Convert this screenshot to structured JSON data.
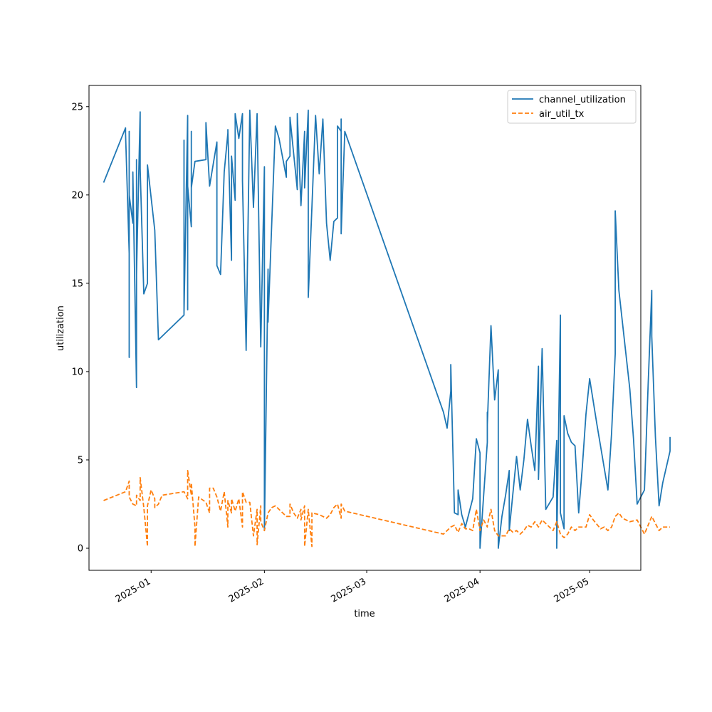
{
  "chart_data": {
    "type": "line",
    "title": "",
    "xlabel": "time",
    "ylabel": "utilization",
    "x_is_date": true,
    "xlim": [
      "2024-12-15",
      "2025-05-15"
    ],
    "ylim": [
      -1.25,
      26.2
    ],
    "x_ticks": [
      "2025-01-01",
      "2025-02-01",
      "2025-03-01",
      "2025-04-01",
      "2025-05-01"
    ],
    "x_tick_labels": [
      "2025-01",
      "2025-02",
      "2025-03",
      "2025-04",
      "2025-05"
    ],
    "y_ticks": [
      0,
      5,
      10,
      15,
      20,
      25
    ],
    "y_tick_labels": [
      "0",
      "5",
      "10",
      "15",
      "20",
      "25"
    ],
    "legend_position": "top-right",
    "grid": false,
    "series": [
      {
        "name": "channel_utilization",
        "color": "#1f77b4",
        "style": "solid",
        "points": [
          [
            "2024-12-19",
            20.7
          ],
          [
            "2024-12-25",
            23.8
          ],
          [
            "2024-12-25",
            23.5
          ],
          [
            "2024-12-26",
            16.7
          ],
          [
            "2024-12-26",
            23.6
          ],
          [
            "2024-12-26",
            10.8
          ],
          [
            "2024-12-26",
            20.0
          ],
          [
            "2024-12-27",
            18.4
          ],
          [
            "2024-12-27",
            21.3
          ],
          [
            "2024-12-28",
            9.1
          ],
          [
            "2024-12-28",
            22.0
          ],
          [
            "2024-12-28",
            15.5
          ],
          [
            "2024-12-29",
            24.7
          ],
          [
            "2024-12-29",
            21.5
          ],
          [
            "2024-12-30",
            14.4
          ],
          [
            "2024-12-31",
            15.0
          ],
          [
            "2024-12-31",
            21.7
          ],
          [
            "2025-01-02",
            18.0
          ],
          [
            "2025-01-03",
            11.8
          ],
          [
            "2025-01-10",
            13.2
          ],
          [
            "2025-01-10",
            23.1
          ],
          [
            "2025-01-10",
            13.3
          ],
          [
            "2025-01-11",
            24.5
          ],
          [
            "2025-01-11",
            13.5
          ],
          [
            "2025-01-11",
            20.5
          ],
          [
            "2025-01-12",
            18.2
          ],
          [
            "2025-01-12",
            23.6
          ],
          [
            "2025-01-12",
            20.4
          ],
          [
            "2025-01-13",
            21.9
          ],
          [
            "2025-01-16",
            22.0
          ],
          [
            "2025-01-16",
            24.1
          ],
          [
            "2025-01-17",
            20.5
          ],
          [
            "2025-01-19",
            23.0
          ],
          [
            "2025-01-19",
            16.0
          ],
          [
            "2025-01-20",
            15.5
          ],
          [
            "2025-01-21",
            21.3
          ],
          [
            "2025-01-22",
            23.5
          ],
          [
            "2025-01-22",
            23.7
          ],
          [
            "2025-01-23",
            16.3
          ],
          [
            "2025-01-23",
            22.2
          ],
          [
            "2025-01-24",
            19.7
          ],
          [
            "2025-01-24",
            24.6
          ],
          [
            "2025-01-25",
            23.2
          ],
          [
            "2025-01-26",
            24.6
          ],
          [
            "2025-01-26",
            20.8
          ],
          [
            "2025-01-27",
            11.2
          ],
          [
            "2025-01-28",
            24.8
          ],
          [
            "2025-01-29",
            19.3
          ],
          [
            "2025-01-30",
            24.6
          ],
          [
            "2025-01-31",
            11.4
          ],
          [
            "2025-02-01",
            21.6
          ],
          [
            "2025-02-01",
            1.0
          ],
          [
            "2025-02-02",
            15.8
          ],
          [
            "2025-02-02",
            12.8
          ],
          [
            "2025-02-04",
            23.9
          ],
          [
            "2025-02-05",
            23.2
          ],
          [
            "2025-02-07",
            21.0
          ],
          [
            "2025-02-07",
            21.9
          ],
          [
            "2025-02-08",
            22.2
          ],
          [
            "2025-02-08",
            24.4
          ],
          [
            "2025-02-10",
            20.3
          ],
          [
            "2025-02-10",
            24.6
          ],
          [
            "2025-02-11",
            19.4
          ],
          [
            "2025-02-12",
            23.6
          ],
          [
            "2025-02-12",
            20.4
          ],
          [
            "2025-02-13",
            24.8
          ],
          [
            "2025-02-13",
            14.2
          ],
          [
            "2025-02-14",
            19.3
          ],
          [
            "2025-02-15",
            24.5
          ],
          [
            "2025-02-16",
            21.2
          ],
          [
            "2025-02-17",
            24.3
          ],
          [
            "2025-02-18",
            18.4
          ],
          [
            "2025-02-19",
            16.3
          ],
          [
            "2025-02-20",
            18.5
          ],
          [
            "2025-02-21",
            18.7
          ],
          [
            "2025-02-21",
            23.9
          ],
          [
            "2025-02-22",
            23.6
          ],
          [
            "2025-02-22",
            24.3
          ],
          [
            "2025-02-22",
            17.8
          ],
          [
            "2025-02-23",
            23.6
          ],
          [
            "2025-03-22",
            7.7
          ],
          [
            "2025-03-23",
            6.8
          ],
          [
            "2025-03-24",
            8.9
          ],
          [
            "2025-03-24",
            10.4
          ],
          [
            "2025-03-25",
            2.0
          ],
          [
            "2025-03-26",
            1.9
          ],
          [
            "2025-03-26",
            3.3
          ],
          [
            "2025-03-27",
            1.9
          ],
          [
            "2025-03-28",
            1.2
          ],
          [
            "2025-03-30",
            2.8
          ],
          [
            "2025-03-31",
            6.2
          ],
          [
            "2025-04-01",
            5.4
          ],
          [
            "2025-04-01",
            0.0
          ],
          [
            "2025-04-03",
            6.0
          ],
          [
            "2025-04-03",
            7.7
          ],
          [
            "2025-04-03",
            7.0
          ],
          [
            "2025-04-04",
            12.6
          ],
          [
            "2025-04-05",
            8.4
          ],
          [
            "2025-04-06",
            10.1
          ],
          [
            "2025-04-06",
            0.0
          ],
          [
            "2025-04-07",
            1.8
          ],
          [
            "2025-04-08",
            3.0
          ],
          [
            "2025-04-09",
            4.4
          ],
          [
            "2025-04-09",
            1.0
          ],
          [
            "2025-04-11",
            5.2
          ],
          [
            "2025-04-12",
            3.3
          ],
          [
            "2025-04-13",
            5.0
          ],
          [
            "2025-04-14",
            7.3
          ],
          [
            "2025-04-15",
            5.8
          ],
          [
            "2025-04-16",
            4.4
          ],
          [
            "2025-04-17",
            10.3
          ],
          [
            "2025-04-17",
            3.9
          ],
          [
            "2025-04-18",
            11.3
          ],
          [
            "2025-04-19",
            2.2
          ],
          [
            "2025-04-21",
            2.9
          ],
          [
            "2025-04-22",
            6.1
          ],
          [
            "2025-04-22",
            0.0
          ],
          [
            "2025-04-23",
            13.2
          ],
          [
            "2025-04-23",
            2.0
          ],
          [
            "2025-04-24",
            1.1
          ],
          [
            "2025-04-24",
            7.5
          ],
          [
            "2025-04-25",
            6.5
          ],
          [
            "2025-04-26",
            6.0
          ],
          [
            "2025-04-27",
            5.8
          ],
          [
            "2025-04-28",
            2.0
          ],
          [
            "2025-04-29",
            4.6
          ],
          [
            "2025-04-30",
            7.6
          ],
          [
            "2025-05-01",
            9.6
          ],
          [
            "2025-05-03",
            7.0
          ],
          [
            "2025-05-06",
            3.3
          ],
          [
            "2025-05-07",
            6.5
          ],
          [
            "2025-05-08",
            11.0
          ],
          [
            "2025-05-08",
            19.1
          ],
          [
            "2025-05-09",
            14.6
          ],
          [
            "2025-05-12",
            9.0
          ],
          [
            "2025-05-13",
            6.2
          ],
          [
            "2025-05-14",
            2.5
          ],
          [
            "2025-05-16",
            3.3
          ],
          [
            "2025-05-17",
            9.2
          ],
          [
            "2025-05-18",
            14.6
          ],
          [
            "2025-05-18",
            12.0
          ],
          [
            "2025-05-19",
            6.3
          ],
          [
            "2025-05-20",
            2.4
          ],
          [
            "2025-05-21",
            3.7
          ],
          [
            "2025-05-23",
            5.5
          ],
          [
            "2025-05-23",
            6.3
          ]
        ]
      },
      {
        "name": "air_util_tx",
        "color": "#ff7f0e",
        "style": "dashed",
        "points": [
          [
            "2024-12-19",
            2.7
          ],
          [
            "2024-12-25",
            3.2
          ],
          [
            "2024-12-26",
            3.8
          ],
          [
            "2024-12-26",
            2.9
          ],
          [
            "2024-12-27",
            2.5
          ],
          [
            "2024-12-28",
            2.4
          ],
          [
            "2024-12-28",
            3.0
          ],
          [
            "2024-12-29",
            2.7
          ],
          [
            "2024-12-29",
            4.0
          ],
          [
            "2024-12-30",
            2.3
          ],
          [
            "2024-12-31",
            0.1
          ],
          [
            "2024-12-31",
            2.4
          ],
          [
            "2025-01-01",
            3.3
          ],
          [
            "2025-01-02",
            2.8
          ],
          [
            "2025-01-02",
            2.3
          ],
          [
            "2025-01-03",
            2.5
          ],
          [
            "2025-01-04",
            3.0
          ],
          [
            "2025-01-10",
            3.2
          ],
          [
            "2025-01-11",
            2.8
          ],
          [
            "2025-01-11",
            4.4
          ],
          [
            "2025-01-12",
            3.0
          ],
          [
            "2025-01-12",
            3.7
          ],
          [
            "2025-01-13",
            1.2
          ],
          [
            "2025-01-13",
            0.1
          ],
          [
            "2025-01-14",
            2.9
          ],
          [
            "2025-01-16",
            2.6
          ],
          [
            "2025-01-17",
            2.0
          ],
          [
            "2025-01-17",
            3.4
          ],
          [
            "2025-01-18",
            3.4
          ],
          [
            "2025-01-19",
            2.9
          ],
          [
            "2025-01-20",
            2.1
          ],
          [
            "2025-01-21",
            3.2
          ],
          [
            "2025-01-22",
            1.2
          ],
          [
            "2025-01-22",
            2.7
          ],
          [
            "2025-01-23",
            2.0
          ],
          [
            "2025-01-23",
            2.8
          ],
          [
            "2025-01-24",
            2.1
          ],
          [
            "2025-01-25",
            2.8
          ],
          [
            "2025-01-26",
            1.2
          ],
          [
            "2025-01-26",
            3.2
          ],
          [
            "2025-01-27",
            2.6
          ],
          [
            "2025-01-28",
            2.6
          ],
          [
            "2025-01-29",
            0.7
          ],
          [
            "2025-01-30",
            2.2
          ],
          [
            "2025-01-30",
            0.2
          ],
          [
            "2025-01-31",
            2.4
          ],
          [
            "2025-01-31",
            1.5
          ],
          [
            "2025-02-01",
            1.0
          ],
          [
            "2025-02-02",
            2.0
          ],
          [
            "2025-02-03",
            2.3
          ],
          [
            "2025-02-04",
            2.4
          ],
          [
            "2025-02-05",
            2.2
          ],
          [
            "2025-02-06",
            2.0
          ],
          [
            "2025-02-07",
            1.8
          ],
          [
            "2025-02-08",
            1.8
          ],
          [
            "2025-02-08",
            2.5
          ],
          [
            "2025-02-09",
            2.0
          ],
          [
            "2025-02-10",
            1.7
          ],
          [
            "2025-02-11",
            2.2
          ],
          [
            "2025-02-11",
            1.6
          ],
          [
            "2025-02-12",
            2.4
          ],
          [
            "2025-02-12",
            0.1
          ],
          [
            "2025-02-13",
            2.2
          ],
          [
            "2025-02-14",
            0.1
          ],
          [
            "2025-02-14",
            2.0
          ],
          [
            "2025-02-16",
            1.9
          ],
          [
            "2025-02-17",
            1.8
          ],
          [
            "2025-02-18",
            1.7
          ],
          [
            "2025-02-19",
            1.9
          ],
          [
            "2025-02-20",
            2.3
          ],
          [
            "2025-02-21",
            2.5
          ],
          [
            "2025-02-22",
            1.7
          ],
          [
            "2025-02-22",
            2.5
          ],
          [
            "2025-02-23",
            2.1
          ],
          [
            "2025-03-22",
            0.8
          ],
          [
            "2025-03-23",
            1.0
          ],
          [
            "2025-03-24",
            1.2
          ],
          [
            "2025-03-25",
            1.3
          ],
          [
            "2025-03-26",
            0.9
          ],
          [
            "2025-03-27",
            1.4
          ],
          [
            "2025-03-28",
            1.1
          ],
          [
            "2025-03-29",
            1.1
          ],
          [
            "2025-03-30",
            1.0
          ],
          [
            "2025-03-31",
            2.2
          ],
          [
            "2025-04-01",
            1.0
          ],
          [
            "2025-04-02",
            1.6
          ],
          [
            "2025-04-03",
            1.2
          ],
          [
            "2025-04-03",
            1.3
          ],
          [
            "2025-04-04",
            2.2
          ],
          [
            "2025-04-05",
            1.0
          ],
          [
            "2025-04-06",
            0.7
          ],
          [
            "2025-04-07",
            0.7
          ],
          [
            "2025-04-08",
            0.7
          ],
          [
            "2025-04-09",
            1.1
          ],
          [
            "2025-04-10",
            0.9
          ],
          [
            "2025-04-11",
            1.0
          ],
          [
            "2025-04-12",
            0.8
          ],
          [
            "2025-04-13",
            1.0
          ],
          [
            "2025-04-14",
            1.3
          ],
          [
            "2025-04-15",
            1.2
          ],
          [
            "2025-04-16",
            1.5
          ],
          [
            "2025-04-17",
            1.2
          ],
          [
            "2025-04-18",
            1.6
          ],
          [
            "2025-04-19",
            1.4
          ],
          [
            "2025-04-20",
            1.2
          ],
          [
            "2025-04-21",
            1.0
          ],
          [
            "2025-04-22",
            1.5
          ],
          [
            "2025-04-23",
            0.8
          ],
          [
            "2025-04-24",
            0.6
          ],
          [
            "2025-04-25",
            0.8
          ],
          [
            "2025-04-26",
            1.2
          ],
          [
            "2025-04-27",
            1.0
          ],
          [
            "2025-04-28",
            1.2
          ],
          [
            "2025-04-30",
            1.2
          ],
          [
            "2025-05-01",
            1.9
          ],
          [
            "2025-05-02",
            1.6
          ],
          [
            "2025-05-04",
            1.1
          ],
          [
            "2025-05-05",
            1.2
          ],
          [
            "2025-05-06",
            1.0
          ],
          [
            "2025-05-07",
            1.2
          ],
          [
            "2025-05-08",
            1.8
          ],
          [
            "2025-05-09",
            2.0
          ],
          [
            "2025-05-10",
            1.7
          ],
          [
            "2025-05-12",
            1.5
          ],
          [
            "2025-05-14",
            1.6
          ],
          [
            "2025-05-16",
            0.8
          ],
          [
            "2025-05-17",
            1.3
          ],
          [
            "2025-05-18",
            1.8
          ],
          [
            "2025-05-19",
            1.4
          ],
          [
            "2025-05-20",
            1.0
          ],
          [
            "2025-05-21",
            1.2
          ],
          [
            "2025-05-23",
            1.2
          ]
        ]
      }
    ]
  }
}
